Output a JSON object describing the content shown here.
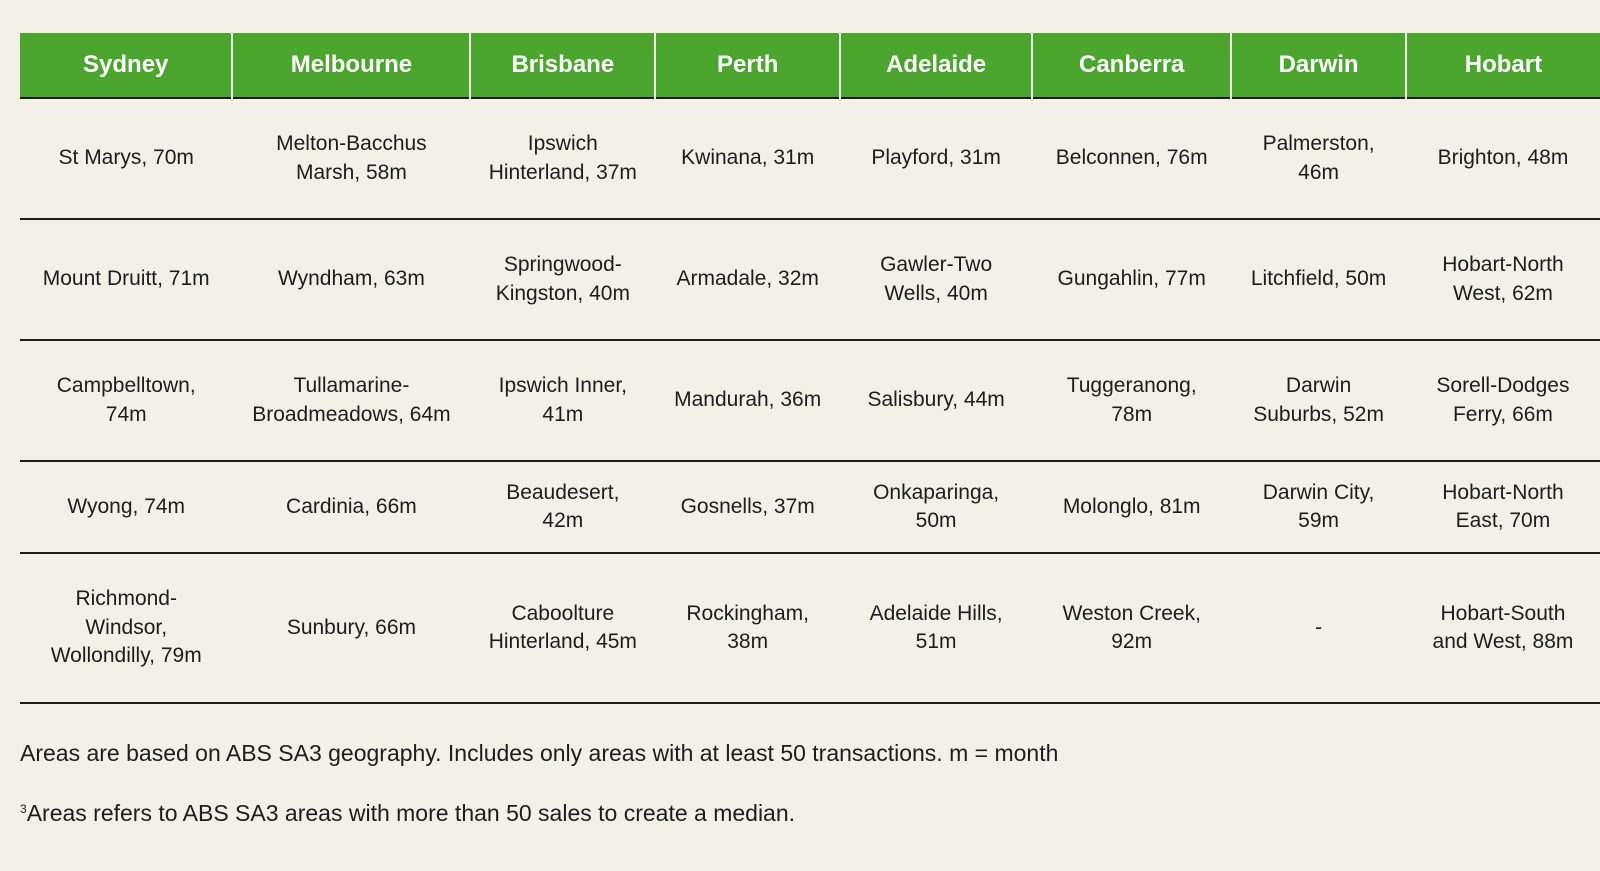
{
  "table": {
    "headers": [
      "Sydney",
      "Melbourne",
      "Brisbane",
      "Perth",
      "Adelaide",
      "Canberra",
      "Darwin",
      "Hobart"
    ],
    "rows": [
      [
        "St Marys, 70m",
        "Melton-Bacchus Marsh, 58m",
        "Ipswich Hinterland, 37m",
        "Kwinana, 31m",
        "Playford, 31m",
        "Belconnen, 76m",
        "Palmerston, 46m",
        "Brighton, 48m"
      ],
      [
        "Mount Druitt, 71m",
        "Wyndham, 63m",
        "Springwood-Kingston, 40m",
        "Armadale, 32m",
        "Gawler-Two Wells, 40m",
        "Gungahlin, 77m",
        "Litchfield, 50m",
        "Hobart-North West, 62m"
      ],
      [
        "Campbelltown, 74m",
        "Tullamarine-Broadmeadows, 64m",
        "Ipswich Inner, 41m",
        "Mandurah, 36m",
        "Salisbury, 44m",
        "Tuggeranong, 78m",
        "Darwin Suburbs, 52m",
        "Sorell-Dodges Ferry, 66m"
      ],
      [
        "Wyong, 74m",
        "Cardinia, 66m",
        "Beaudesert, 42m",
        "Gosnells, 37m",
        "Onkaparinga, 50m",
        "Molonglo, 81m",
        "Darwin City, 59m",
        "Hobart-North East, 70m"
      ],
      [
        "Richmond-Windsor, Wollondilly, 79m",
        "Sunbury, 66m",
        "Caboolture Hinterland, 45m",
        "Rockingham, 38m",
        "Adelaide Hills, 51m",
        "Weston Creek, 92m",
        "-",
        "Hobart-South and West, 88m"
      ]
    ]
  },
  "notes": {
    "line1": "Areas are based on ABS SA3 geography. Includes only areas with at least 50 transactions. m = month",
    "line2_marker": "3",
    "line2": "Areas refers to ABS SA3 areas with more than 50 sales to create a median."
  },
  "colors": {
    "header_bg": "#4ba52f",
    "page_bg": "#f3f0e8",
    "rule": "#1d1d1d"
  }
}
